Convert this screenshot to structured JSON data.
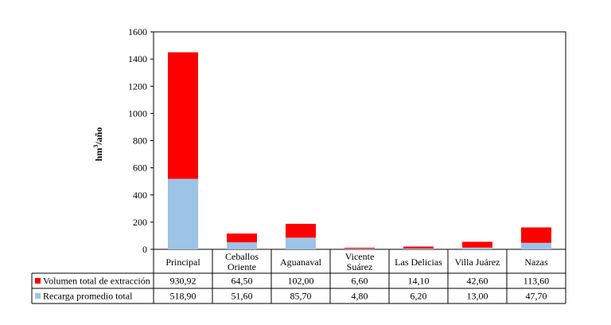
{
  "chart_data": {
    "type": "bar",
    "stacked": true,
    "categories": [
      [
        "Principal"
      ],
      [
        "Ceballos",
        "Oriente"
      ],
      [
        "Aguanaval"
      ],
      [
        "Vicente",
        "Suárez"
      ],
      [
        "Las Delicias"
      ],
      [
        "Villa Juárez"
      ],
      [
        "Nazas"
      ]
    ],
    "series": [
      {
        "name": "Recarga promedio total",
        "color": "#9dc3e6",
        "values": [
          518.9,
          51.6,
          85.7,
          4.8,
          6.2,
          13.0,
          47.7
        ],
        "labels": [
          "518,90",
          "51,60",
          "85,70",
          "4,80",
          "6,20",
          "13,00",
          "47,70"
        ]
      },
      {
        "name": "Volumen total de extracción",
        "color": "#ff0000",
        "values": [
          930.92,
          64.5,
          102.0,
          6.6,
          14.1,
          42.6,
          113.6
        ],
        "labels": [
          "930,92",
          "64,50",
          "102,00",
          "6,60",
          "14,10",
          "42,60",
          "113,60"
        ]
      }
    ],
    "ylabel_main": "hm",
    "ylabel_sup": "3",
    "ylabel_rest": "/año",
    "ylim": [
      0,
      1600
    ],
    "yticks": [
      0,
      200,
      400,
      600,
      800,
      1000,
      1200,
      1400,
      1600
    ],
    "grid": false,
    "legend_placement": "data-table",
    "table_row_order": [
      "Volumen total de extracción",
      "Recarga promedio total"
    ]
  }
}
